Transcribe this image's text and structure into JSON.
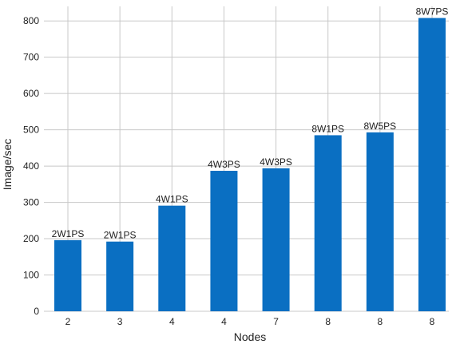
{
  "chart_data": {
    "type": "bar",
    "categories": [
      "2",
      "3",
      "4",
      "4",
      "7",
      "8",
      "8",
      "8"
    ],
    "values": [
      196,
      192,
      291,
      387,
      394,
      485,
      493,
      808
    ],
    "bar_labels": [
      "2W1PS",
      "2W1PS",
      "4W1PS",
      "4W3PS",
      "4W3PS",
      "8W1PS",
      "8W5PS",
      "8W7PS"
    ],
    "xlabel": "Nodes",
    "ylabel": "Image/sec",
    "ylim": [
      0,
      840
    ],
    "yticks": [
      0,
      100,
      200,
      300,
      400,
      500,
      600,
      700,
      800
    ],
    "grid": true,
    "colors": {
      "bar": "#0a6fc2",
      "grid": "#c8c8c8"
    }
  }
}
